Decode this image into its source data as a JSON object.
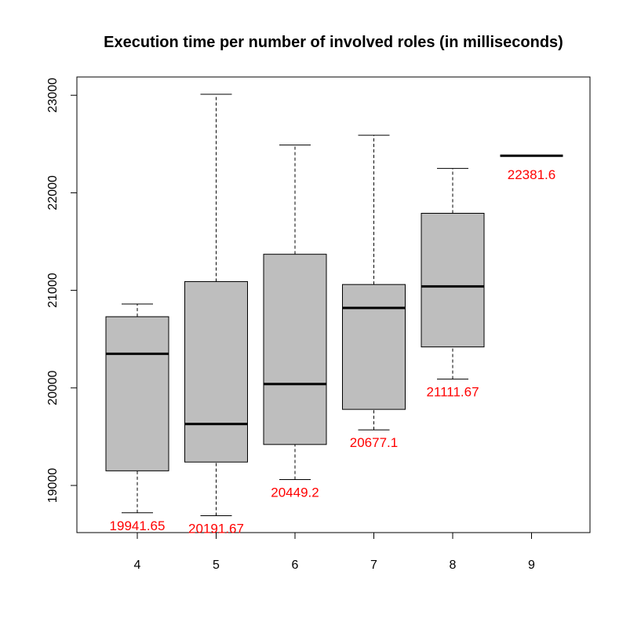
{
  "chart_data": {
    "type": "boxplot",
    "title": "Execution time per number of involved roles (in milliseconds)",
    "xlabel": "",
    "ylabel": "",
    "ylim": [
      18500,
      23450
    ],
    "yticks": [
      19000,
      20000,
      21000,
      22000,
      23000
    ],
    "box_color": "#bebebe",
    "label_color": "#ff0000",
    "categories": [
      "4",
      "5",
      "6",
      "7",
      "8",
      "9"
    ],
    "boxes": [
      {
        "category": "4",
        "min": 18720,
        "q1": 19150,
        "median": 20350,
        "q3": 20730,
        "max": 20860,
        "label": "19941.65"
      },
      {
        "category": "5",
        "min": 18690,
        "q1": 19240,
        "median": 19630,
        "q3": 21090,
        "max": 23010,
        "label": "20191.67"
      },
      {
        "category": "6",
        "min": 19060,
        "q1": 19420,
        "median": 20040,
        "q3": 21370,
        "max": 22490,
        "label": "20449.2"
      },
      {
        "category": "7",
        "min": 19570,
        "q1": 19780,
        "median": 20820,
        "q3": 21060,
        "max": 22590,
        "label": "20677.1"
      },
      {
        "category": "8",
        "min": 20090,
        "q1": 20420,
        "median": 21040,
        "q3": 21790,
        "max": 22250,
        "label": "21111.67"
      },
      {
        "category": "9",
        "min": 22380,
        "q1": 22380,
        "median": 22380,
        "q3": 22380,
        "max": 22380,
        "label": "22381.6"
      }
    ]
  }
}
